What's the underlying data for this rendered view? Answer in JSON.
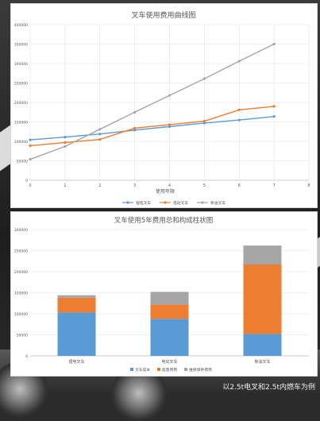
{
  "charts": {
    "line": {
      "title": "叉车使用费用曲线图",
      "xlabel": "使用年限"
    },
    "bar": {
      "title": "叉车使用5年费用总和构成柱状图"
    }
  },
  "caption": "以2.5t电叉和2.5t内燃车为例",
  "colors": {
    "blue": "#5b9bd5",
    "orange": "#ed7d31",
    "gray": "#a5a5a5"
  },
  "chart_data": [
    {
      "type": "line",
      "title": "叉车使用费用曲线图",
      "xlabel": "使用年限",
      "ylabel": "",
      "xlim": [
        0,
        8
      ],
      "ylim": [
        0,
        400000
      ],
      "x_ticks": [
        0,
        1,
        2,
        3,
        4,
        5,
        6,
        7,
        8
      ],
      "y_ticks": [
        0,
        50000,
        100000,
        150000,
        200000,
        250000,
        300000,
        350000,
        400000
      ],
      "grid": true,
      "legend": "bottom",
      "x": [
        0,
        1,
        2,
        3,
        4,
        5,
        6,
        7
      ],
      "series": [
        {
          "name": "锂电叉车",
          "color": "#5b9bd5",
          "values": [
            104000,
            111000,
            119000,
            129000,
            138000,
            147000,
            155000,
            164000
          ]
        },
        {
          "name": "电动叉车",
          "color": "#ed7d31",
          "values": [
            89000,
            97000,
            105000,
            134000,
            143000,
            152000,
            181000,
            190000
          ]
        },
        {
          "name": "柴油叉车",
          "color": "#a5a5a5",
          "values": [
            54000,
            87000,
            131000,
            175000,
            218000,
            261000,
            306000,
            350000
          ]
        }
      ]
    },
    {
      "type": "bar",
      "stacked": true,
      "title": "叉车使用5年费用总和构成柱状图",
      "ylim": [
        0,
        300000
      ],
      "y_ticks": [
        0,
        50000,
        100000,
        150000,
        200000,
        250000,
        300000
      ],
      "grid": true,
      "legend": "bottom",
      "categories": [
        "锂电叉车",
        "电动叉车",
        "柴油叉车"
      ],
      "series": [
        {
          "name": "叉车成本",
          "color": "#5b9bd5",
          "values": [
            103000,
            88000,
            52000
          ]
        },
        {
          "name": "能量费用",
          "color": "#ed7d31",
          "values": [
            35000,
            34000,
            165000
          ]
        },
        {
          "name": "维保保养费用",
          "color": "#a5a5a5",
          "values": [
            6000,
            30000,
            45000
          ]
        }
      ]
    }
  ]
}
